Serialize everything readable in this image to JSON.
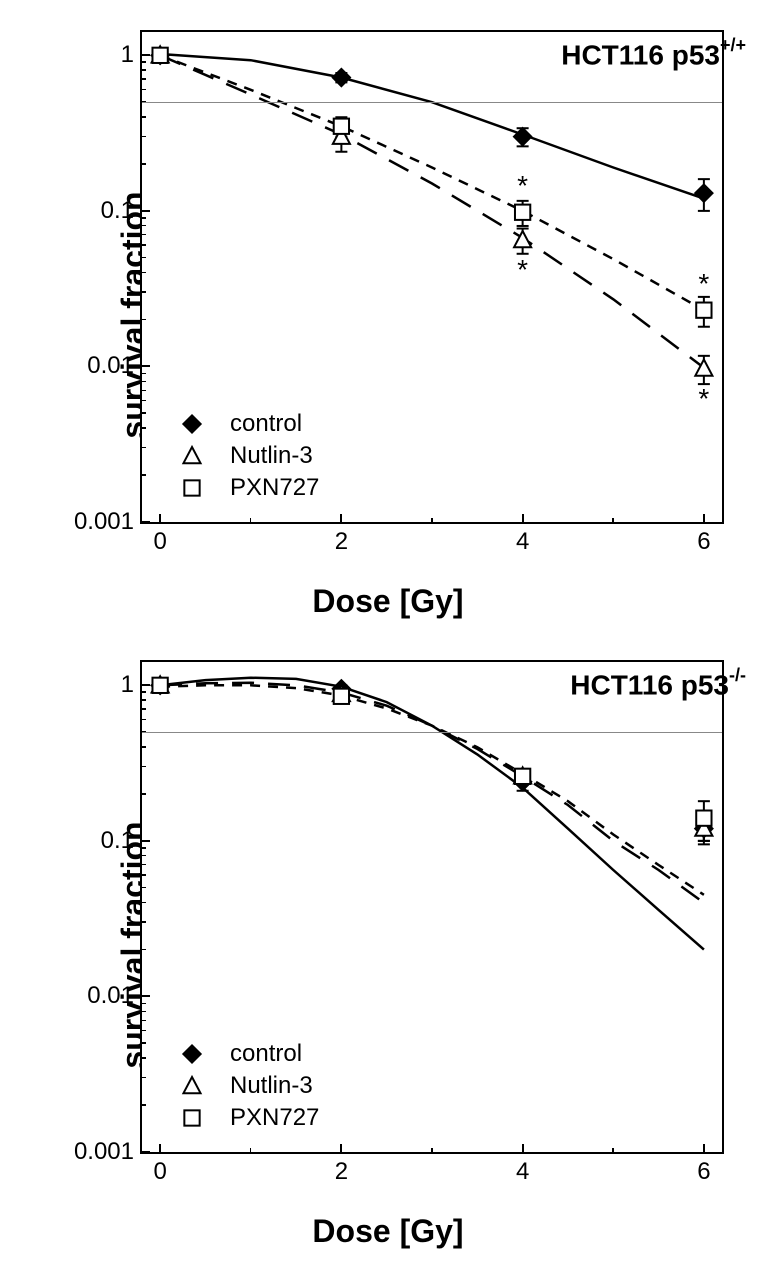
{
  "global": {
    "y_label": "survival fraction",
    "x_label": "Dose [Gy]",
    "x_ticks": [
      0,
      2,
      4,
      6
    ],
    "x_minor_ticks": [
      1,
      3,
      5
    ],
    "x_range": [
      -0.2,
      6.2
    ],
    "y_range_log": [
      -3,
      0.15
    ],
    "y_ticks": [
      1,
      0.1,
      0.01,
      0.001
    ],
    "y_tick_labels": [
      "1",
      "0.1",
      "0.01",
      "0.001"
    ],
    "ref_line_y": 0.5,
    "background": "#ffffff",
    "axis_color": "#000000",
    "ref_line_color": "#a0a0a0",
    "font_family": "Arial",
    "legend_items": [
      {
        "name": "control",
        "marker": "diamond-filled",
        "color": "#000000",
        "dash": "solid"
      },
      {
        "name": "Nutlin-3",
        "marker": "triangle-open",
        "color": "#000000",
        "dash": "long-dash"
      },
      {
        "name": "PXN727",
        "marker": "square-open",
        "color": "#000000",
        "dash": "short-dash"
      }
    ]
  },
  "panels": [
    {
      "title_html": "HCT116 p53<span class='sup'>+/+</span>",
      "ref_line": true,
      "series": [
        {
          "key": "control",
          "data": [
            {
              "x": 0,
              "y": 1.0,
              "err": 0.0
            },
            {
              "x": 2,
              "y": 0.72,
              "err": 0.05
            },
            {
              "x": 4,
              "y": 0.3,
              "err": 0.04
            },
            {
              "x": 6,
              "y": 0.13,
              "err": 0.03
            }
          ],
          "curve": [
            [
              0,
              1.02
            ],
            [
              1,
              0.93
            ],
            [
              2,
              0.72
            ],
            [
              3,
              0.5
            ],
            [
              4,
              0.31
            ],
            [
              5,
              0.19
            ],
            [
              6,
              0.12
            ]
          ]
        },
        {
          "key": "Nutlin-3",
          "data": [
            {
              "x": 0,
              "y": 1.0,
              "err": 0.0
            },
            {
              "x": 2,
              "y": 0.3,
              "err": 0.06
            },
            {
              "x": 4,
              "y": 0.065,
              "err": 0.012,
              "star": "below"
            },
            {
              "x": 6,
              "y": 0.0097,
              "err": 0.002,
              "star": "below"
            }
          ],
          "curve": [
            [
              0,
              1.0
            ],
            [
              1,
              0.56
            ],
            [
              2,
              0.31
            ],
            [
              3,
              0.15
            ],
            [
              4,
              0.067
            ],
            [
              5,
              0.027
            ],
            [
              6,
              0.0098
            ]
          ]
        },
        {
          "key": "PXN727",
          "data": [
            {
              "x": 0,
              "y": 1.0,
              "err": 0.0
            },
            {
              "x": 2,
              "y": 0.35,
              "err": 0.05
            },
            {
              "x": 4,
              "y": 0.098,
              "err": 0.018,
              "star": "above"
            },
            {
              "x": 6,
              "y": 0.023,
              "err": 0.005,
              "star": "above"
            }
          ],
          "curve": [
            [
              0,
              1.0
            ],
            [
              1,
              0.6
            ],
            [
              2,
              0.35
            ],
            [
              3,
              0.19
            ],
            [
              4,
              0.1
            ],
            [
              5,
              0.049
            ],
            [
              6,
              0.023
            ]
          ]
        }
      ]
    },
    {
      "title_html": "HCT116 p53<span class='sup'>-/-</span>",
      "ref_line": true,
      "series": [
        {
          "key": "control",
          "data": [
            {
              "x": 0,
              "y": 1.0,
              "err": 0.0
            },
            {
              "x": 2,
              "y": 0.95,
              "err": 0.05
            },
            {
              "x": 4,
              "y": 0.24,
              "err": 0.03
            },
            {
              "x": 6,
              "y": 0.12,
              "err": 0.02
            }
          ],
          "curve": [
            [
              0,
              1.0
            ],
            [
              0.5,
              1.08
            ],
            [
              1,
              1.12
            ],
            [
              1.5,
              1.1
            ],
            [
              2,
              0.98
            ],
            [
              2.5,
              0.78
            ],
            [
              3,
              0.55
            ],
            [
              3.5,
              0.36
            ],
            [
              4,
              0.22
            ],
            [
              4.5,
              0.12
            ],
            [
              5,
              0.065
            ],
            [
              5.5,
              0.036
            ],
            [
              6,
              0.02
            ]
          ]
        },
        {
          "key": "Nutlin-3",
          "data": [
            {
              "x": 0,
              "y": 1.0,
              "err": 0.0
            },
            {
              "x": 2,
              "y": 0.88,
              "err": 0.05
            },
            {
              "x": 4,
              "y": 0.26,
              "err": 0.03
            },
            {
              "x": 6,
              "y": 0.12,
              "err": 0.025
            }
          ],
          "curve": [
            [
              0,
              1.0
            ],
            [
              0.5,
              1.03
            ],
            [
              1,
              1.04
            ],
            [
              1.5,
              1.0
            ],
            [
              2,
              0.9
            ],
            [
              2.5,
              0.74
            ],
            [
              3,
              0.55
            ],
            [
              3.5,
              0.39
            ],
            [
              4,
              0.26
            ],
            [
              4.5,
              0.17
            ],
            [
              5,
              0.1
            ],
            [
              5.5,
              0.065
            ],
            [
              6,
              0.04
            ]
          ]
        },
        {
          "key": "PXN727",
          "data": [
            {
              "x": 0,
              "y": 1.0,
              "err": 0.0
            },
            {
              "x": 2,
              "y": 0.85,
              "err": 0.05
            },
            {
              "x": 4,
              "y": 0.26,
              "err": 0.03
            },
            {
              "x": 6,
              "y": 0.14,
              "err": 0.04
            }
          ],
          "curve": [
            [
              0,
              0.98
            ],
            [
              0.5,
              1.0
            ],
            [
              1,
              1.0
            ],
            [
              1.5,
              0.96
            ],
            [
              2,
              0.86
            ],
            [
              2.5,
              0.71
            ],
            [
              3,
              0.55
            ],
            [
              3.5,
              0.4
            ],
            [
              4,
              0.27
            ],
            [
              4.5,
              0.18
            ],
            [
              5,
              0.11
            ],
            [
              5.5,
              0.07
            ],
            [
              6,
              0.045
            ]
          ]
        }
      ]
    }
  ]
}
